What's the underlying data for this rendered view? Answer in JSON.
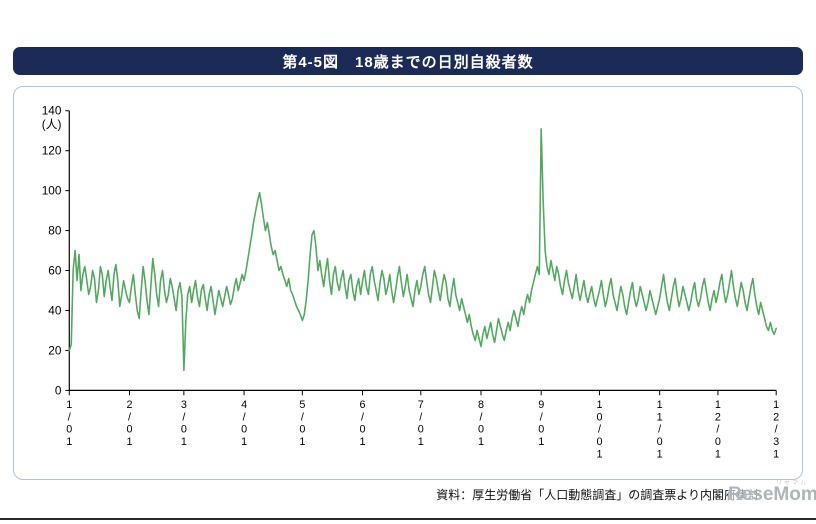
{
  "header": {
    "title": "第4-5図　18歳までの日別自殺者数"
  },
  "source_note": "資料：厚生労働省「人口動態調査」の調査票より内閣府集計",
  "watermark": {
    "text": "ReseMom",
    "small_text": "リセマム"
  },
  "colors": {
    "header_bg": "#1b2a56",
    "panel_border": "#a9c4de",
    "line": "#52a85f",
    "watermark": "#b0b4b8"
  },
  "chart_data": {
    "type": "line",
    "title": "第4-5図　18歳までの日別自殺者数",
    "xlabel": "",
    "ylabel": "",
    "y_unit_label": "(人)",
    "ylim": [
      0,
      140
    ],
    "y_ticks": [
      0,
      20,
      40,
      60,
      80,
      100,
      120,
      140
    ],
    "grid": false,
    "legend_position": "none",
    "x_ticks": [
      {
        "label": "1/01",
        "day": 0
      },
      {
        "label": "2/01",
        "day": 31
      },
      {
        "label": "3/01",
        "day": 59
      },
      {
        "label": "4/01",
        "day": 90
      },
      {
        "label": "5/01",
        "day": 120
      },
      {
        "label": "6/01",
        "day": 151
      },
      {
        "label": "7/01",
        "day": 181
      },
      {
        "label": "8/01",
        "day": 212
      },
      {
        "label": "9/01",
        "day": 243
      },
      {
        "label": "10/01",
        "day": 273
      },
      {
        "label": "11/01",
        "day": 304
      },
      {
        "label": "12/01",
        "day": 334
      },
      {
        "label": "12/31",
        "day": 364
      }
    ],
    "series": [
      {
        "name": "日別自殺者数",
        "values": [
          20,
          23,
          60,
          70,
          55,
          68,
          50,
          58,
          62,
          55,
          48,
          52,
          60,
          56,
          44,
          50,
          62,
          58,
          47,
          55,
          60,
          52,
          45,
          58,
          63,
          55,
          42,
          48,
          55,
          50,
          46,
          44,
          52,
          58,
          48,
          40,
          36,
          50,
          62,
          55,
          45,
          38,
          52,
          66,
          58,
          48,
          42,
          55,
          60,
          50,
          44,
          48,
          56,
          52,
          46,
          40,
          50,
          54,
          47,
          10,
          35,
          48,
          52,
          44,
          50,
          55,
          47,
          42,
          50,
          53,
          46,
          40,
          48,
          52,
          45,
          38,
          44,
          50,
          46,
          42,
          47,
          52,
          48,
          43,
          46,
          52,
          56,
          50,
          54,
          58,
          55,
          60,
          66,
          72,
          78,
          85,
          90,
          95,
          99,
          93,
          86,
          80,
          84,
          78,
          72,
          68,
          70,
          65,
          60,
          62,
          58,
          55,
          52,
          56,
          50,
          48,
          45,
          42,
          40,
          38,
          35,
          38,
          45,
          55,
          68,
          78,
          80,
          72,
          60,
          65,
          58,
          52,
          60,
          66,
          55,
          48,
          58,
          62,
          54,
          50,
          56,
          60,
          52,
          46,
          55,
          58,
          50,
          45,
          52,
          56,
          48,
          55,
          60,
          52,
          48,
          58,
          62,
          55,
          50,
          45,
          54,
          60,
          56,
          48,
          52,
          58,
          50,
          44,
          50,
          57,
          62,
          54,
          47,
          52,
          58,
          50,
          46,
          42,
          50,
          55,
          48,
          52,
          58,
          62,
          55,
          48,
          44,
          52,
          60,
          56,
          50,
          45,
          52,
          58,
          54,
          46,
          42,
          50,
          56,
          48,
          44,
          40,
          46,
          42,
          38,
          34,
          38,
          32,
          28,
          25,
          30,
          26,
          22,
          28,
          32,
          26,
          30,
          34,
          28,
          24,
          30,
          36,
          32,
          28,
          25,
          30,
          34,
          30,
          36,
          40,
          36,
          32,
          38,
          42,
          38,
          44,
          48,
          44,
          50,
          54,
          58,
          62,
          58,
          131,
          95,
          70,
          62,
          58,
          65,
          60,
          55,
          62,
          58,
          52,
          48,
          55,
          60,
          54,
          50,
          46,
          52,
          58,
          50,
          45,
          50,
          55,
          48,
          44,
          48,
          52,
          46,
          42,
          46,
          50,
          55,
          48,
          42,
          46,
          52,
          56,
          48,
          44,
          40,
          46,
          52,
          48,
          42,
          38,
          44,
          50,
          54,
          46,
          42,
          46,
          52,
          48,
          44,
          40,
          44,
          50,
          46,
          42,
          38,
          42,
          46,
          52,
          58,
          50,
          44,
          40,
          46,
          52,
          56,
          48,
          42,
          46,
          52,
          48,
          44,
          40,
          44,
          50,
          54,
          46,
          42,
          46,
          52,
          56,
          50,
          44,
          40,
          46,
          50,
          44,
          48,
          54,
          58,
          50,
          44,
          48,
          54,
          60,
          52,
          46,
          42,
          48,
          54,
          50,
          44,
          40,
          46,
          52,
          56,
          48,
          42,
          38,
          44,
          40,
          36,
          32,
          30,
          34,
          30,
          28,
          31
        ]
      }
    ]
  }
}
